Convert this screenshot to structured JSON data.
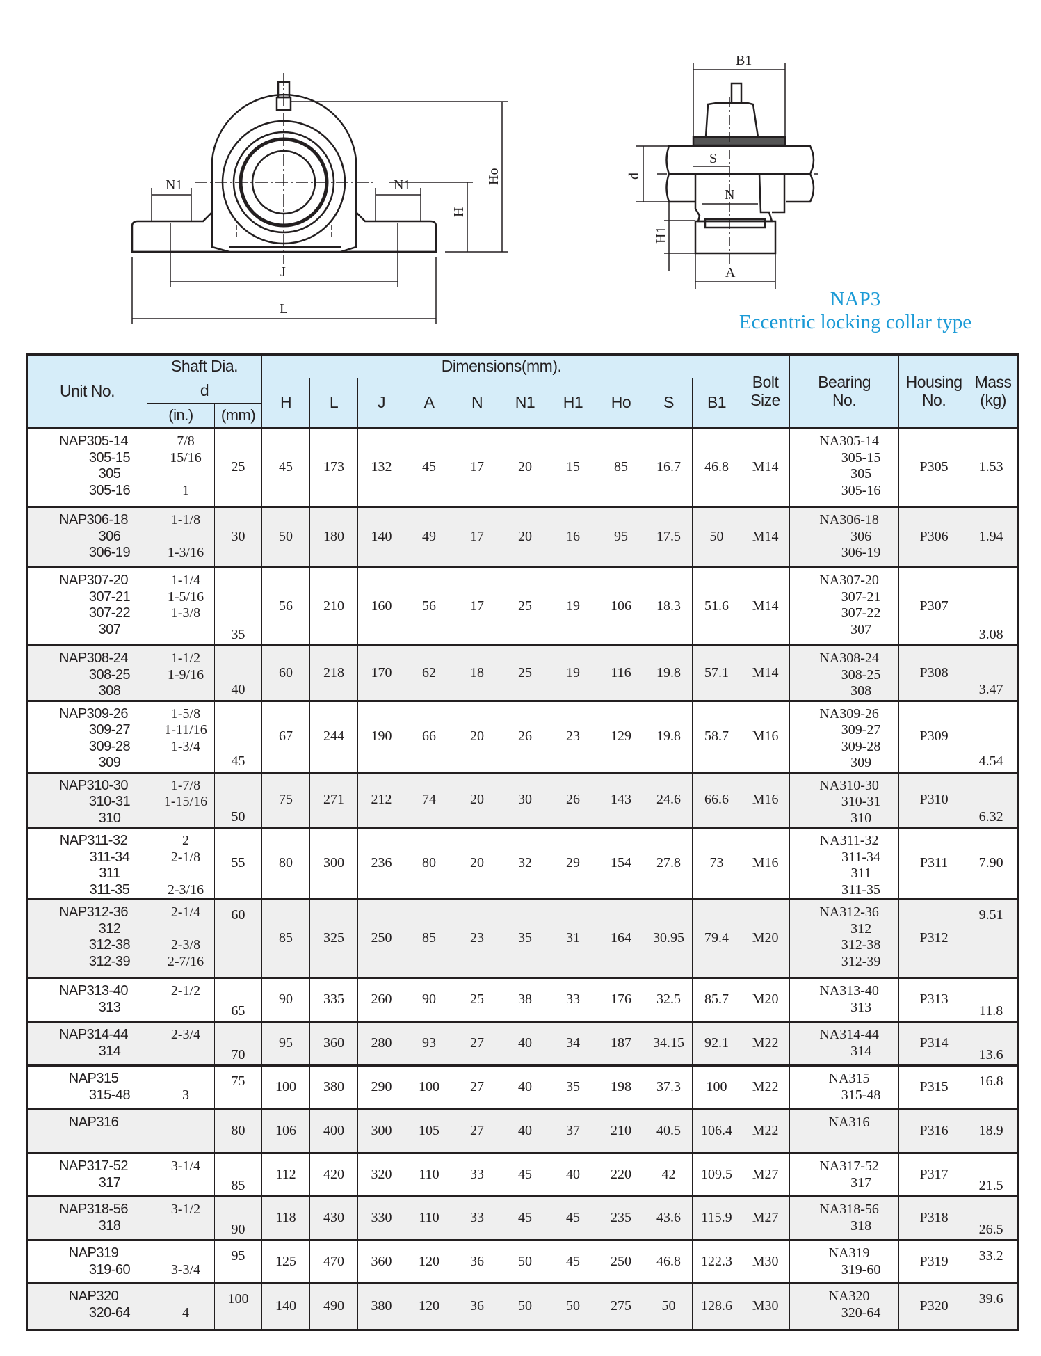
{
  "diagram": {
    "front_labels": {
      "N1_left": "N1",
      "N1_right": "N1",
      "J": "J",
      "L": "L",
      "H": "H",
      "Ho": "Ho"
    },
    "side_labels": {
      "B1": "B1",
      "S": "S",
      "d": "d",
      "N": "N",
      "H1": "H1",
      "A": "A"
    }
  },
  "caption": {
    "model": "NAP3",
    "type": "Eccentric locking collar type",
    "color": "#1a9ad6"
  },
  "table": {
    "header": {
      "unit_no": "Unit No.",
      "shaft_dia": "Shaft Dia.",
      "d": "d",
      "in": "(in.)",
      "mm": "(mm)",
      "dimensions": "Dimensions(mm).",
      "dims": [
        "H",
        "L",
        "J",
        "A",
        "N",
        "N1",
        "H1",
        "Ho",
        "S",
        "B1"
      ],
      "bolt_size": [
        "Bolt",
        "Size"
      ],
      "bearing_no": [
        "Bearing",
        "No."
      ],
      "housing_no": [
        "Housing",
        "No."
      ],
      "mass": [
        "Mass",
        "(kg)"
      ]
    },
    "header_color": "#d6edf9",
    "rows": [
      {
        "units": [
          "NAP305-14",
          "305-15",
          "305",
          "305-16"
        ],
        "inch": [
          "7/8",
          "15/16",
          "",
          "1"
        ],
        "mm": "25",
        "dims": [
          "45",
          "173",
          "132",
          "45",
          "17",
          "20",
          "15",
          "85",
          "16.7",
          "46.8"
        ],
        "bolt": "M14",
        "bearings": [
          "NA305-14",
          "305-15",
          "305",
          "305-16"
        ],
        "housing": "P305",
        "mass": "1.53"
      },
      {
        "units": [
          "NAP306-18",
          "306",
          "306-19"
        ],
        "inch": [
          "1-1/8",
          "",
          "1-3/16"
        ],
        "mm": "30",
        "dims": [
          "50",
          "180",
          "140",
          "49",
          "17",
          "20",
          "16",
          "95",
          "17.5",
          "50"
        ],
        "bolt": "M14",
        "bearings": [
          "NA306-18",
          "306",
          "306-19"
        ],
        "housing": "P306",
        "mass": "1.94"
      },
      {
        "units": [
          "NAP307-20",
          "307-21",
          "307-22",
          "307"
        ],
        "inch": [
          "1-1/4",
          "1-5/16",
          "1-3/8",
          ""
        ],
        "mm": "35",
        "dims": [
          "56",
          "210",
          "160",
          "56",
          "17",
          "25",
          "19",
          "106",
          "18.3",
          "51.6"
        ],
        "bolt": "M14",
        "bearings": [
          "NA307-20",
          "307-21",
          "307-22",
          "307"
        ],
        "housing": "P307",
        "mass": "3.08"
      },
      {
        "units": [
          "NAP308-24",
          "308-25",
          "308"
        ],
        "inch": [
          "1-1/2",
          "1-9/16",
          ""
        ],
        "mm": "40",
        "dims": [
          "60",
          "218",
          "170",
          "62",
          "18",
          "25",
          "19",
          "116",
          "19.8",
          "57.1"
        ],
        "bolt": "M14",
        "bearings": [
          "NA308-24",
          "308-25",
          "308"
        ],
        "housing": "P308",
        "mass": "3.47"
      },
      {
        "units": [
          "NAP309-26",
          "309-27",
          "309-28",
          "309"
        ],
        "inch": [
          "1-5/8",
          "1-11/16",
          "1-3/4",
          ""
        ],
        "mm": "45",
        "dims": [
          "67",
          "244",
          "190",
          "66",
          "20",
          "26",
          "23",
          "129",
          "19.8",
          "58.7"
        ],
        "bolt": "M16",
        "bearings": [
          "NA309-26",
          "309-27",
          "309-28",
          "309"
        ],
        "housing": "P309",
        "mass": "4.54"
      },
      {
        "units": [
          "NAP310-30",
          "310-31",
          "310"
        ],
        "inch": [
          "1-7/8",
          "1-15/16",
          ""
        ],
        "mm": "50",
        "dims": [
          "75",
          "271",
          "212",
          "74",
          "20",
          "30",
          "26",
          "143",
          "24.6",
          "66.6"
        ],
        "bolt": "M16",
        "bearings": [
          "NA310-30",
          "310-31",
          "310"
        ],
        "housing": "P310",
        "mass": "6.32"
      },
      {
        "units": [
          "NAP311-32",
          "311-34",
          "311",
          "311-35"
        ],
        "inch": [
          "2",
          "2-1/8",
          "",
          "2-3/16"
        ],
        "mm": "55",
        "dims": [
          "80",
          "300",
          "236",
          "80",
          "20",
          "32",
          "29",
          "154",
          "27.8",
          "73"
        ],
        "bolt": "M16",
        "bearings": [
          "NA311-32",
          "311-34",
          "311",
          "311-35"
        ],
        "housing": "P311",
        "mass": "7.90"
      },
      {
        "units": [
          "NAP312-36",
          "312",
          "312-38",
          "312-39"
        ],
        "inch": [
          "2-1/4",
          "",
          "2-3/8",
          "2-7/16"
        ],
        "mm": "60",
        "dims": [
          "85",
          "325",
          "250",
          "85",
          "23",
          "35",
          "31",
          "164",
          "30.95",
          "79.4"
        ],
        "bolt": "M20",
        "bearings": [
          "NA312-36",
          "312",
          "312-38",
          "312-39"
        ],
        "housing": "P312",
        "mass": "9.51"
      },
      {
        "units": [
          "NAP313-40",
          "313"
        ],
        "inch": [
          "2-1/2",
          ""
        ],
        "mm": "65",
        "dims": [
          "90",
          "335",
          "260",
          "90",
          "25",
          "38",
          "33",
          "176",
          "32.5",
          "85.7"
        ],
        "bolt": "M20",
        "bearings": [
          "NA313-40",
          "313"
        ],
        "housing": "P313",
        "mass": "11.8"
      },
      {
        "units": [
          "NAP314-44",
          "314"
        ],
        "inch": [
          "2-3/4",
          ""
        ],
        "mm": "70",
        "dims": [
          "95",
          "360",
          "280",
          "93",
          "27",
          "40",
          "34",
          "187",
          "34.15",
          "92.1"
        ],
        "bolt": "M22",
        "bearings": [
          "NA314-44",
          "314"
        ],
        "housing": "P314",
        "mass": "13.6"
      },
      {
        "units": [
          "NAP315",
          "315-48"
        ],
        "inch": [
          "",
          "3"
        ],
        "mm": "75",
        "dims": [
          "100",
          "380",
          "290",
          "100",
          "27",
          "40",
          "35",
          "198",
          "37.3",
          "100"
        ],
        "bolt": "M22",
        "bearings": [
          "NA315",
          "315-48"
        ],
        "housing": "P315",
        "mass": "16.8"
      },
      {
        "units": [
          "NAP316"
        ],
        "inch": [
          ""
        ],
        "mm": "80",
        "dims": [
          "106",
          "400",
          "300",
          "105",
          "27",
          "40",
          "37",
          "210",
          "40.5",
          "106.4"
        ],
        "bolt": "M22",
        "bearings": [
          "NA316"
        ],
        "housing": "P316",
        "mass": "18.9"
      },
      {
        "units": [
          "NAP317-52",
          "317"
        ],
        "inch": [
          "3-1/4",
          ""
        ],
        "mm": "85",
        "dims": [
          "112",
          "420",
          "320",
          "110",
          "33",
          "45",
          "40",
          "220",
          "42",
          "109.5"
        ],
        "bolt": "M27",
        "bearings": [
          "NA317-52",
          "317"
        ],
        "housing": "P317",
        "mass": "21.5"
      },
      {
        "units": [
          "NAP318-56",
          "318"
        ],
        "inch": [
          "3-1/2",
          ""
        ],
        "mm": "90",
        "dims": [
          "118",
          "430",
          "330",
          "110",
          "33",
          "45",
          "45",
          "235",
          "43.6",
          "115.9"
        ],
        "bolt": "M27",
        "bearings": [
          "NA318-56",
          "318"
        ],
        "housing": "P318",
        "mass": "26.5"
      },
      {
        "units": [
          "NAP319",
          "319-60"
        ],
        "inch": [
          "",
          "3-3/4"
        ],
        "mm": "95",
        "dims": [
          "125",
          "470",
          "360",
          "120",
          "36",
          "50",
          "45",
          "250",
          "46.8",
          "122.3"
        ],
        "bolt": "M30",
        "bearings": [
          "NA319",
          "319-60"
        ],
        "housing": "P319",
        "mass": "33.2"
      },
      {
        "units": [
          "NAP320",
          "320-64"
        ],
        "inch": [
          "",
          "4"
        ],
        "mm": "100",
        "dims": [
          "140",
          "490",
          "380",
          "120",
          "36",
          "50",
          "50",
          "275",
          "50",
          "128.6"
        ],
        "bolt": "M30",
        "bearings": [
          "NA320",
          "320-64"
        ],
        "housing": "P320",
        "mass": "39.6"
      }
    ]
  }
}
